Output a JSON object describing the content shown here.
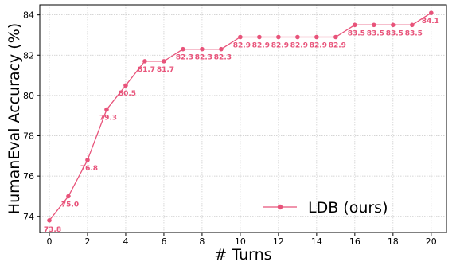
{
  "chart_data": {
    "type": "line",
    "title": "",
    "xlabel": "# Turns",
    "ylabel": "HumanEval Accuracy (%)",
    "xlim": [
      -0.5,
      20.8
    ],
    "ylim": [
      73.2,
      84.5
    ],
    "x_ticks": [
      0,
      2,
      4,
      6,
      8,
      10,
      12,
      14,
      16,
      18,
      20
    ],
    "y_ticks": [
      74,
      76,
      78,
      80,
      82,
      84
    ],
    "grid": true,
    "legend_position": "bottom-right",
    "series": [
      {
        "name": "LDB (ours)",
        "color": "#e8537a",
        "x": [
          0,
          1,
          2,
          3,
          4,
          5,
          6,
          7,
          8,
          9,
          10,
          11,
          12,
          13,
          14,
          15,
          16,
          17,
          18,
          19,
          20
        ],
        "values": [
          73.8,
          75.0,
          76.8,
          79.3,
          80.5,
          81.7,
          81.7,
          82.3,
          82.3,
          82.3,
          82.9,
          82.9,
          82.9,
          82.9,
          82.9,
          82.9,
          83.5,
          83.5,
          83.5,
          83.5,
          84.1
        ],
        "labels": [
          "73.8",
          "75.0",
          "76.8",
          "79.3",
          "80.5",
          "81.7",
          "81.7",
          "82.3",
          "82.3",
          "82.3",
          "82.9",
          "82.9",
          "82.9",
          "82.9",
          "82.9",
          "82.9",
          "83.5",
          "83.5",
          "83.5",
          "83.5",
          "84.1"
        ]
      }
    ]
  }
}
